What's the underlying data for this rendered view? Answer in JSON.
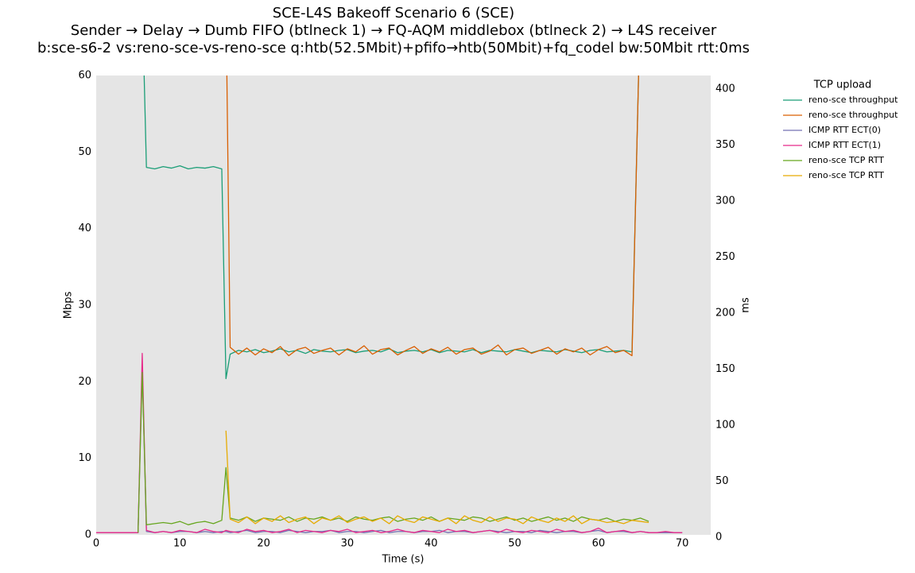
{
  "chart_data": {
    "type": "line",
    "title": "SCE-L4S Bakeoff Scenario 6 (SCE)",
    "subtitle": [
      "Sender → Delay → Dumb FIFO (btlneck 1) → FQ-AQM middlebox (btlneck 2) → L4S receiver",
      "b:sce-s6-2 vs:reno-sce-vs-reno-sce q:htb(52.5Mbit)+pfifo→htb(50Mbit)+fq_codel bw:50Mbit rtt:0ms"
    ],
    "x_label": "Time (s)",
    "y_label": "Mbps",
    "y2_label": "ms",
    "legend_title": "TCP upload",
    "legend": "upper right outside",
    "xlim": [
      0,
      73.4
    ],
    "xticks": [
      0,
      10,
      20,
      30,
      40,
      50,
      60,
      70
    ],
    "ylim": [
      0,
      60
    ],
    "yticks": [
      0,
      10,
      20,
      30,
      40,
      50,
      60
    ],
    "y2lim": [
      0,
      410
    ],
    "y2ticks": [
      0,
      50,
      100,
      150,
      200,
      250,
      300,
      350,
      400
    ],
    "x": [
      0,
      1,
      2,
      3,
      4,
      5,
      5.5,
      6,
      7,
      8,
      9,
      10,
      11,
      12,
      13,
      14,
      15,
      15.5,
      16,
      17,
      18,
      19,
      20,
      21,
      22,
      23,
      24,
      25,
      26,
      27,
      28,
      29,
      30,
      31,
      32,
      33,
      34,
      35,
      36,
      37,
      38,
      39,
      40,
      41,
      42,
      43,
      44,
      45,
      46,
      47,
      48,
      49,
      50,
      51,
      52,
      53,
      54,
      55,
      56,
      57,
      58,
      59,
      60,
      61,
      62,
      63,
      64,
      65,
      66,
      67,
      68,
      69,
      70
    ],
    "series": [
      {
        "name": "reno-sce throughput",
        "color": "#1b9e77",
        "axis": "y",
        "values": [
          null,
          null,
          null,
          null,
          null,
          null,
          70,
          48,
          47.8,
          48.1,
          47.9,
          48.2,
          47.8,
          48,
          47.9,
          48.1,
          47.8,
          20.4,
          23.6,
          24.1,
          23.9,
          24.2,
          23.8,
          24,
          24.3,
          23.9,
          24.1,
          23.7,
          24.2,
          24,
          23.9,
          24.1,
          24.2,
          23.8,
          24,
          24.1,
          23.9,
          24.3,
          23.8,
          24,
          24.1,
          23.9,
          24.2,
          23.8,
          24.1,
          24,
          23.9,
          24.2,
          23.8,
          24.1,
          24,
          23.9,
          24.2,
          24,
          23.8,
          24.1,
          24,
          23.9,
          24.2,
          24,
          23.8,
          24.1,
          24.2,
          23.9,
          24,
          24.1,
          23.9,
          70,
          null,
          null,
          null,
          null,
          null
        ]
      },
      {
        "name": "reno-sce throughput",
        "color": "#d95f02",
        "axis": "y",
        "values": [
          null,
          null,
          null,
          null,
          null,
          null,
          null,
          null,
          null,
          null,
          null,
          null,
          null,
          null,
          null,
          null,
          null,
          70,
          24.5,
          23.6,
          24.4,
          23.5,
          24.3,
          23.8,
          24.6,
          23.4,
          24.2,
          24.5,
          23.7,
          24.1,
          24.4,
          23.5,
          24.3,
          23.9,
          24.7,
          23.6,
          24.2,
          24.4,
          23.5,
          24.1,
          24.6,
          23.7,
          24.3,
          23.9,
          24.5,
          23.6,
          24.2,
          24.4,
          23.6,
          24,
          24.8,
          23.5,
          24.2,
          24.4,
          23.7,
          24.1,
          24.5,
          23.6,
          24.3,
          23.9,
          24.4,
          23.5,
          24.2,
          24.6,
          23.8,
          24.1,
          23.4,
          70,
          null,
          null,
          null,
          null,
          null
        ]
      },
      {
        "name": "ICMP RTT ECT(0)",
        "color": "#7570b3",
        "axis": "y2",
        "values": [
          2,
          2,
          2,
          2,
          2,
          2,
          150,
          3,
          2,
          3,
          2,
          3,
          3,
          2,
          3,
          2,
          3,
          3,
          2,
          3,
          4,
          2,
          3,
          3,
          2,
          4,
          3,
          2,
          3,
          3,
          4,
          2,
          3,
          3,
          2,
          3,
          4,
          2,
          3,
          3,
          2,
          3,
          3,
          4,
          2,
          3,
          3,
          2,
          3,
          4,
          3,
          2,
          3,
          3,
          2,
          4,
          3,
          2,
          3,
          3,
          2,
          3,
          4,
          2,
          3,
          3,
          2,
          3,
          2,
          2,
          2,
          2,
          2
        ]
      },
      {
        "name": "ICMP RTT ECT(1)",
        "color": "#e7298a",
        "axis": "y2",
        "values": [
          2,
          2,
          2,
          2,
          2,
          2,
          162,
          4,
          2,
          3,
          2,
          4,
          3,
          2,
          5,
          3,
          2,
          4,
          3,
          2,
          5,
          3,
          4,
          2,
          3,
          5,
          2,
          4,
          3,
          2,
          4,
          3,
          5,
          2,
          3,
          4,
          2,
          3,
          5,
          3,
          2,
          4,
          3,
          2,
          5,
          3,
          4,
          2,
          3,
          4,
          2,
          5,
          3,
          2,
          4,
          3,
          2,
          5,
          3,
          4,
          2,
          3,
          6,
          2,
          3,
          4,
          2,
          3,
          2,
          2,
          3,
          2,
          2
        ]
      },
      {
        "name": "reno-sce TCP RTT",
        "color": "#66a61e",
        "axis": "y2",
        "values": [
          null,
          null,
          null,
          null,
          null,
          2,
          145,
          9,
          10,
          11,
          10,
          12,
          9,
          11,
          12,
          10,
          13,
          60,
          15,
          13,
          16,
          12,
          15,
          14,
          13,
          16,
          12,
          15,
          14,
          16,
          13,
          15,
          12,
          16,
          14,
          13,
          15,
          16,
          12,
          14,
          15,
          13,
          16,
          12,
          15,
          14,
          13,
          16,
          15,
          12,
          14,
          16,
          13,
          15,
          12,
          14,
          16,
          13,
          15,
          12,
          16,
          14,
          13,
          15,
          12,
          14,
          13,
          15,
          12,
          null,
          null,
          null,
          null
        ]
      },
      {
        "name": "reno-sce TCP RTT",
        "color": "#e6ab02",
        "axis": "y2",
        "values": [
          null,
          null,
          null,
          null,
          null,
          null,
          null,
          null,
          null,
          null,
          null,
          null,
          null,
          null,
          null,
          null,
          null,
          93,
          14,
          11,
          16,
          10,
          15,
          12,
          17,
          11,
          14,
          16,
          10,
          15,
          13,
          17,
          11,
          14,
          16,
          12,
          15,
          10,
          17,
          13,
          11,
          16,
          14,
          12,
          15,
          10,
          17,
          13,
          11,
          16,
          12,
          15,
          14,
          10,
          16,
          13,
          11,
          15,
          12,
          17,
          10,
          14,
          13,
          11,
          12,
          10,
          13,
          12,
          11,
          null,
          null,
          null,
          null
        ]
      }
    ]
  }
}
